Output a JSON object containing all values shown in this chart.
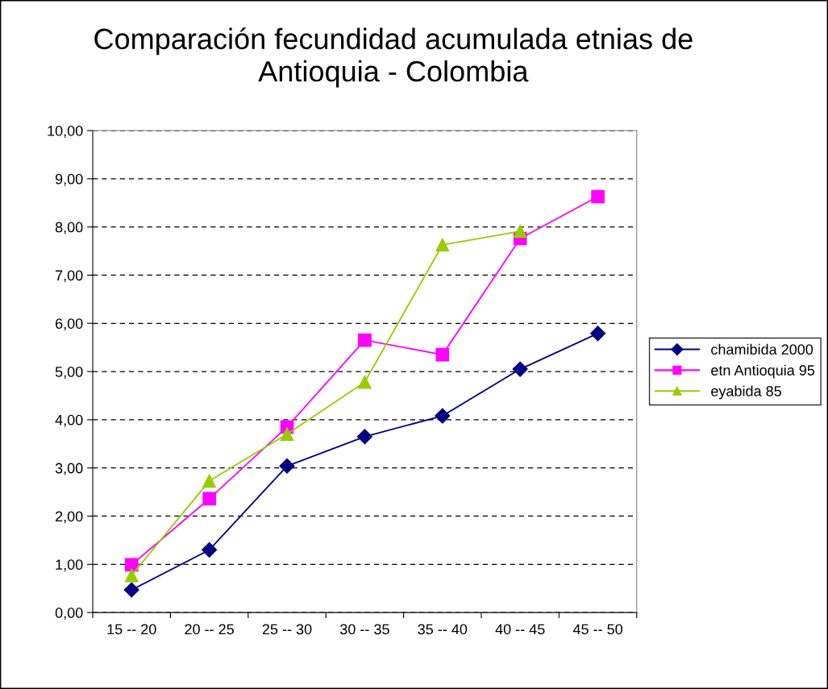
{
  "chart_data": {
    "type": "line",
    "title": "Comparación fecundidad acumulada etnias de\nAntioquia - Colombia",
    "categories": [
      "15 -- 20",
      "20 -- 25",
      "25 -- 30",
      "30 -- 35",
      "35 -- 40",
      "40 -- 45",
      "45 -- 50"
    ],
    "series": [
      {
        "name": "chamibida 2000",
        "color": "#000080",
        "marker": "diamond",
        "values": [
          0.47,
          1.3,
          3.04,
          3.65,
          4.08,
          5.05,
          5.79
        ]
      },
      {
        "name": "etn Antioquia 95",
        "color": "#ff00ff",
        "marker": "square",
        "values": [
          0.99,
          2.36,
          3.85,
          5.65,
          5.35,
          7.76,
          8.63
        ]
      },
      {
        "name": "eyabida 85",
        "color": "#99cc00",
        "marker": "triangle",
        "values": [
          0.77,
          2.73,
          3.7,
          4.78,
          7.63,
          7.91,
          null
        ]
      }
    ],
    "ylim": [
      0,
      10
    ],
    "yticks": [
      {
        "value": 0,
        "label": "0,00"
      },
      {
        "value": 1,
        "label": "1,00"
      },
      {
        "value": 2,
        "label": "2,00"
      },
      {
        "value": 3,
        "label": "3,00"
      },
      {
        "value": 4,
        "label": "4,00"
      },
      {
        "value": 5,
        "label": "5,00"
      },
      {
        "value": 6,
        "label": "6,00"
      },
      {
        "value": 7,
        "label": "7,00"
      },
      {
        "value": 8,
        "label": "8,00"
      },
      {
        "value": 9,
        "label": "9,00"
      },
      {
        "value": 10,
        "label": "10,00"
      }
    ],
    "grid": "y",
    "legend": "right",
    "line_style": "solid"
  }
}
